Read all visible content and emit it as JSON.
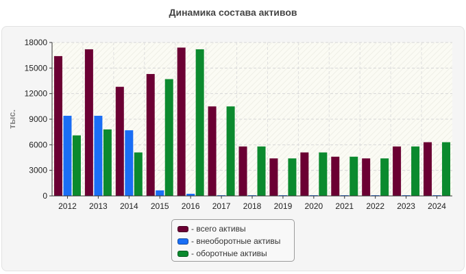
{
  "chart_data": {
    "type": "bar",
    "title": "Динамика состава активов",
    "xlabel": "",
    "ylabel": "тыс.",
    "ylim": [
      0,
      18000
    ],
    "yticks": [
      0,
      3000,
      6000,
      9000,
      12000,
      15000,
      18000
    ],
    "categories": [
      "2012",
      "2013",
      "2014",
      "2015",
      "2016",
      "2017",
      "2018",
      "2019",
      "2020",
      "2021",
      "2022",
      "2023",
      "2024"
    ],
    "series": [
      {
        "name": "- всего активы",
        "color": "#6b0033",
        "values": [
          16400,
          17200,
          12800,
          14300,
          17400,
          10500,
          5800,
          4400,
          5100,
          4600,
          4400,
          5800,
          6300
        ]
      },
      {
        "name": "- внеоборотные активы",
        "color": "#1a6ef5",
        "values": [
          9400,
          9400,
          7700,
          650,
          250,
          80,
          80,
          80,
          80,
          80,
          80,
          80,
          80
        ]
      },
      {
        "name": "- оборотные активы",
        "color": "#0b8a2e",
        "values": [
          7100,
          7800,
          5100,
          13700,
          17200,
          10500,
          5800,
          4400,
          5100,
          4600,
          4400,
          5800,
          6300
        ]
      }
    ],
    "legend_position": "bottom-center",
    "grid": true
  }
}
